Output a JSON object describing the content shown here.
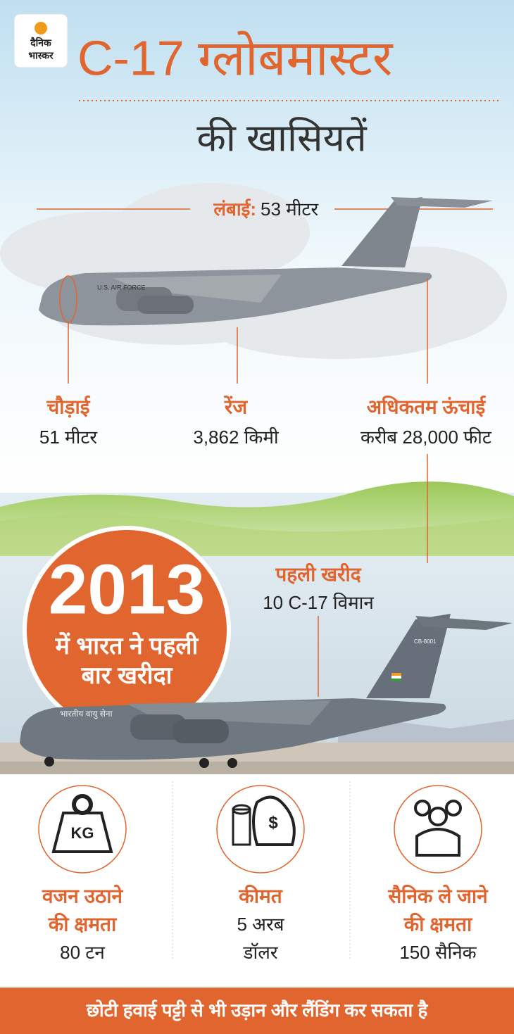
{
  "logo": [
    "दैनिक",
    "भास्कर"
  ],
  "title": "C-17 ग्लोबमास्टर",
  "subtitle": "की खासियतें",
  "length": {
    "label": "लंबाई:",
    "value": "53 मीटर"
  },
  "specs": [
    {
      "label": "चौड़ाई",
      "value": "51 मीटर"
    },
    {
      "label": "रेंज",
      "value": "3,862 किमी"
    },
    {
      "label": "अधिकतम ऊंचाई",
      "value": "करीब 28,000 फीट"
    }
  ],
  "badge": {
    "year": "2013",
    "text": [
      "में भारत ने पहली",
      "बार खरीदा"
    ]
  },
  "first_purchase": {
    "label": "पहली खरीद",
    "value": "10 C-17 विमान"
  },
  "plane_markings": [
    "U.S. AIR FORCE",
    "भारतीय वायु सेना",
    "CB-8001"
  ],
  "icons": [
    "KG",
    "$"
  ],
  "features": [
    {
      "label": [
        "वजन उठाने",
        "की क्षमता"
      ],
      "value": [
        "80 टन"
      ]
    },
    {
      "label": [
        "कीमत"
      ],
      "value": [
        "5 अरब",
        "डॉलर"
      ]
    },
    {
      "label": [
        "सैनिक ले जाने",
        "की क्षमता"
      ],
      "value": [
        "150 सैनिक"
      ]
    }
  ],
  "footer": "छोटी हवाई पट्टी से भी उड़ान और लैंडिंग कर सकता है"
}
